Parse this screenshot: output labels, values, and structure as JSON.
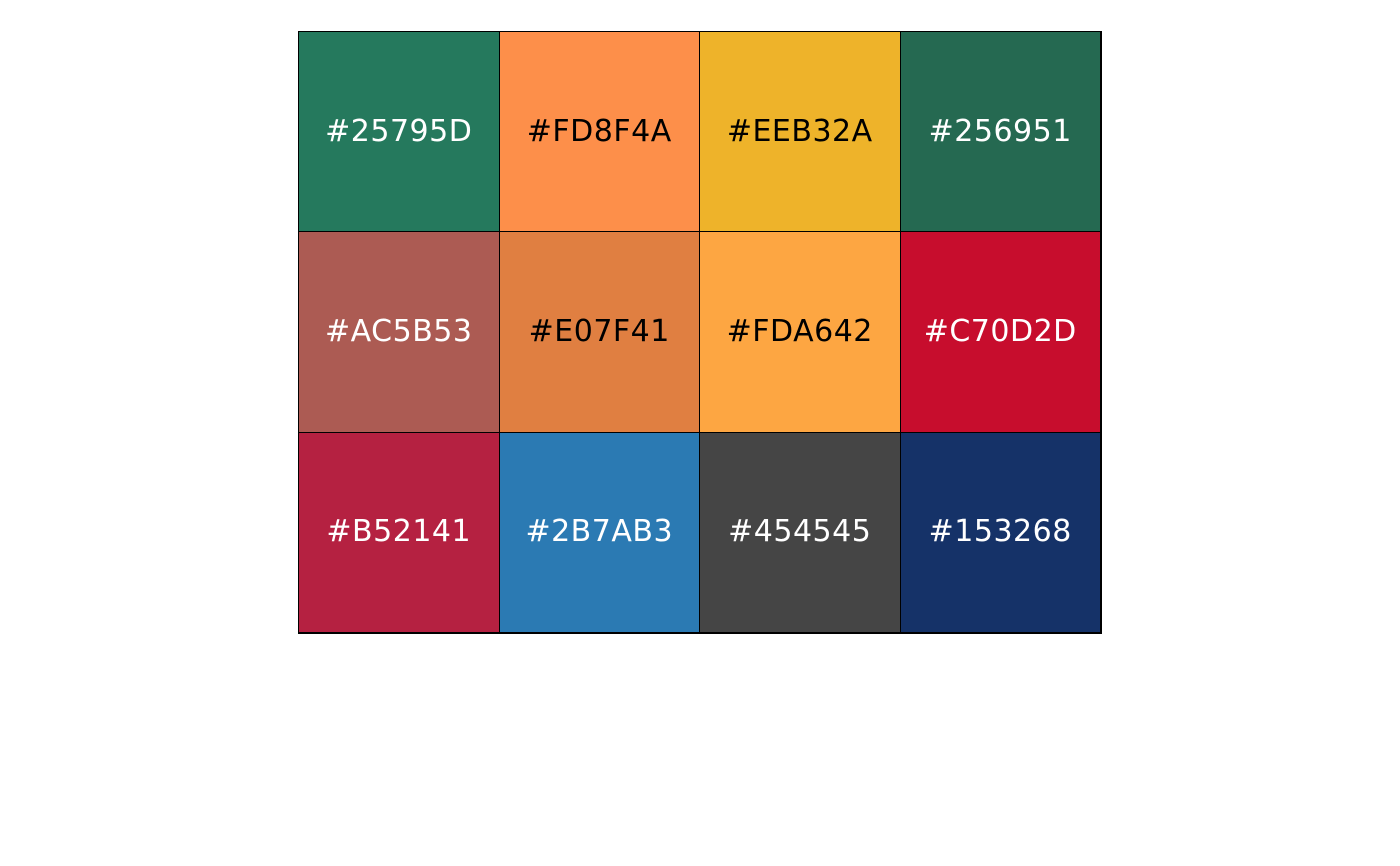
{
  "palette": {
    "swatches": [
      {
        "label": "#25795D",
        "color": "#25795D",
        "text_color": "#FFFFFF"
      },
      {
        "label": "#FD8F4A",
        "color": "#FD8F4A",
        "text_color": "#000000"
      },
      {
        "label": "#EEB32A",
        "color": "#EEB32A",
        "text_color": "#000000"
      },
      {
        "label": "#256951",
        "color": "#256951",
        "text_color": "#FFFFFF"
      },
      {
        "label": "#AC5B53",
        "color": "#AC5B53",
        "text_color": "#FFFFFF"
      },
      {
        "label": "#E07F41",
        "color": "#E07F41",
        "text_color": "#000000"
      },
      {
        "label": "#FDA642",
        "color": "#FDA642",
        "text_color": "#000000"
      },
      {
        "label": "#C70D2D",
        "color": "#C70D2D",
        "text_color": "#FFFFFF"
      },
      {
        "label": "#B52141",
        "color": "#B52141",
        "text_color": "#FFFFFF"
      },
      {
        "label": "#2B7AB3",
        "color": "#2B7AB3",
        "text_color": "#FFFFFF"
      },
      {
        "label": "#454545",
        "color": "#454545",
        "text_color": "#FFFFFF"
      },
      {
        "label": "#153268",
        "color": "#153268",
        "text_color": "#FFFFFF"
      }
    ]
  }
}
